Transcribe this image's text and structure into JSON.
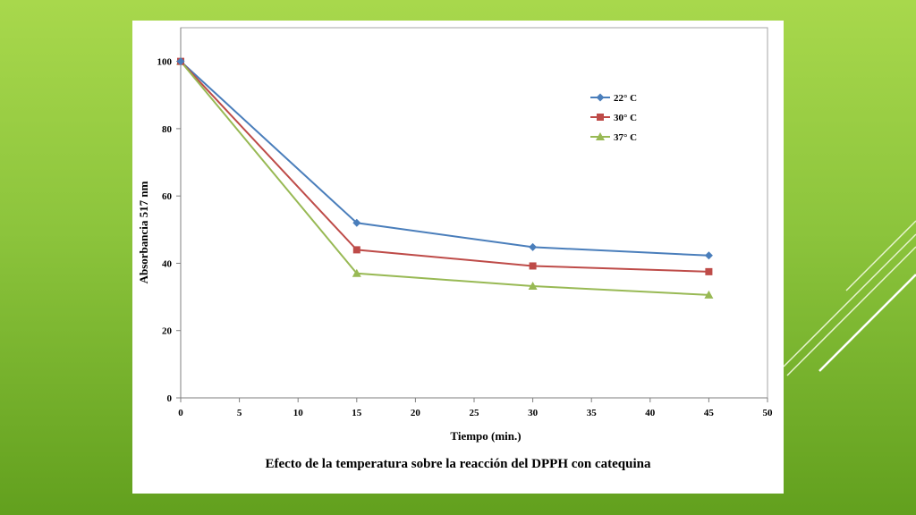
{
  "slide": {
    "background_colors": [
      "#a8d84c",
      "#62a01e"
    ],
    "caption": "Efecto de la temperatura  sobre la reacción del DPPH  con catequina"
  },
  "chart_data": {
    "type": "line",
    "title": "",
    "xlabel": "Tiempo  (min.)",
    "ylabel": "Absorbancia  517 nm",
    "xlim": [
      0,
      50
    ],
    "ylim": [
      0,
      110
    ],
    "xticks": [
      0,
      5,
      10,
      15,
      20,
      25,
      30,
      35,
      40,
      45,
      50
    ],
    "yticks": [
      0,
      20,
      40,
      60,
      80,
      100
    ],
    "grid": false,
    "legend_position": "top-right",
    "x": [
      0,
      15,
      30,
      45
    ],
    "series": [
      {
        "name": "22° C",
        "values": [
          100,
          52,
          44.8,
          42.3
        ],
        "color": "#4a7ebb",
        "marker": "diamond"
      },
      {
        "name": "30° C",
        "values": [
          100,
          44,
          39.2,
          37.5
        ],
        "color": "#be4b48",
        "marker": "square"
      },
      {
        "name": "37° C",
        "values": [
          100,
          37,
          33.2,
          30.6
        ],
        "color": "#98b954",
        "marker": "triangle"
      }
    ]
  }
}
